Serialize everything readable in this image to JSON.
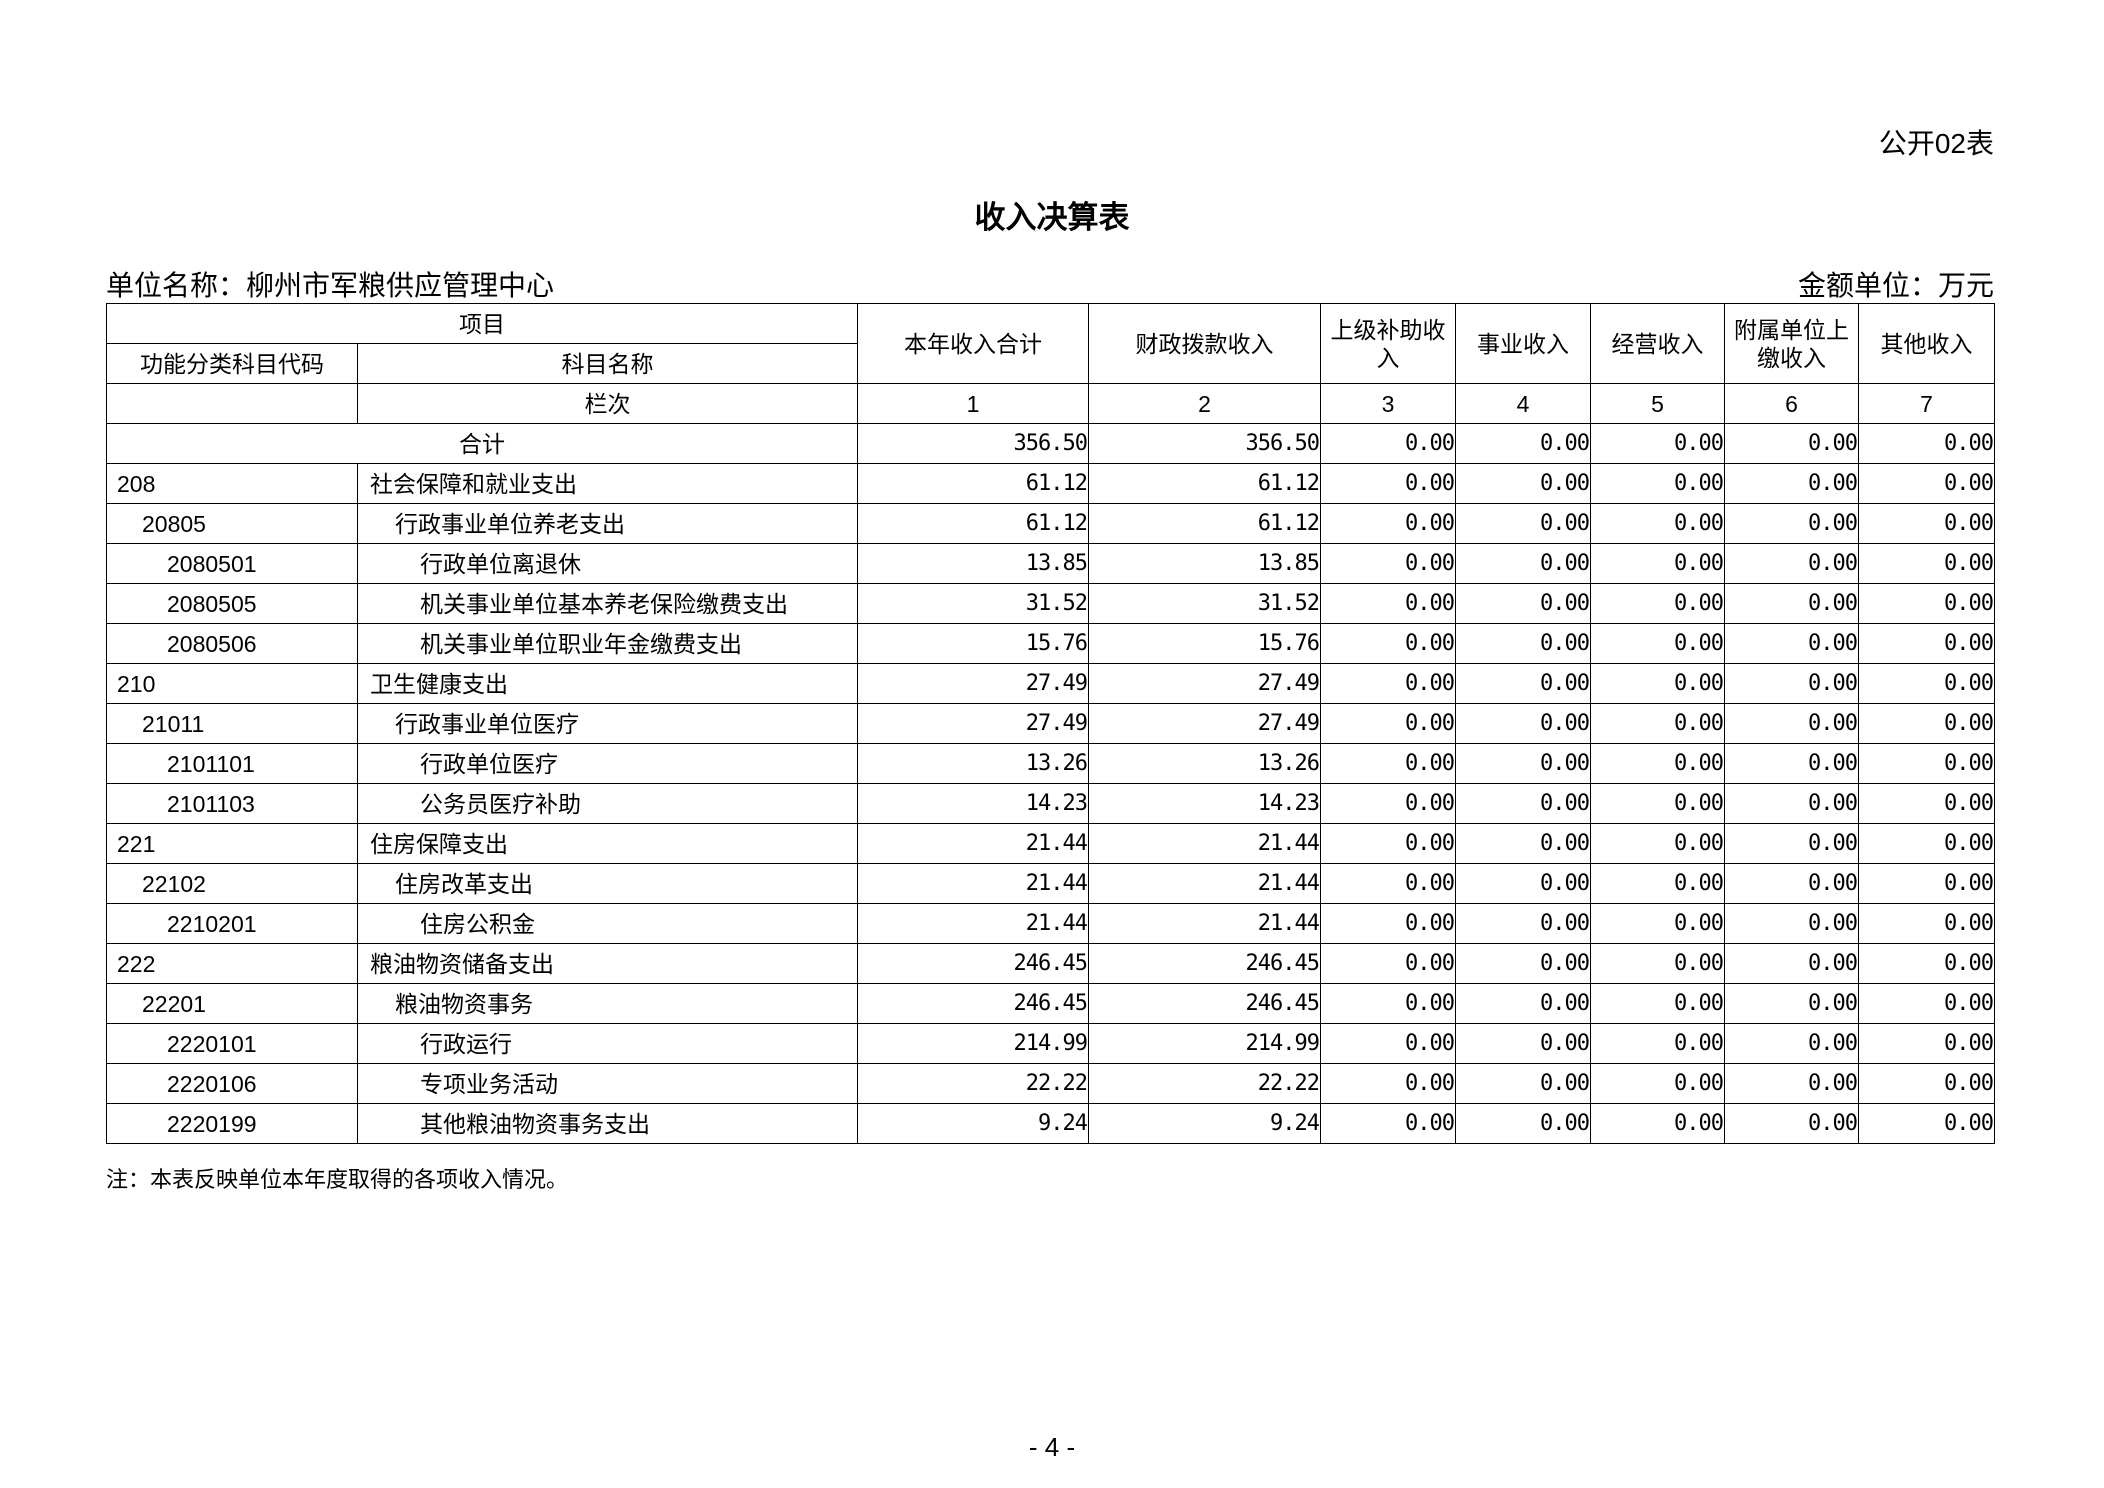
{
  "header": {
    "code": "公开02表",
    "title": "收入决算表",
    "unit_name": "单位名称：柳州市军粮供应管理中心",
    "amount_unit": "金额单位：万元"
  },
  "table": {
    "item_header": "项目",
    "sub_headers": [
      "功能分类科目代码",
      "科目名称"
    ],
    "column_headers": [
      "本年收入合计",
      "财政拨款收入",
      "上级补助收入",
      "事业收入",
      "经营收入",
      "附属单位上缴收入",
      "其他收入"
    ],
    "index_label": "栏次",
    "column_numbers": [
      "1",
      "2",
      "3",
      "4",
      "5",
      "6",
      "7"
    ],
    "total": {
      "label": "合计",
      "values": [
        "356.50",
        "356.50",
        "0.00",
        "0.00",
        "0.00",
        "0.00",
        "0.00"
      ]
    },
    "rows": [
      {
        "code": "208",
        "name": "社会保障和就业支出",
        "values": [
          "61.12",
          "61.12",
          "0.00",
          "0.00",
          "0.00",
          "0.00",
          "0.00"
        ]
      },
      {
        "code": "20805",
        "name": "行政事业单位养老支出",
        "values": [
          "61.12",
          "61.12",
          "0.00",
          "0.00",
          "0.00",
          "0.00",
          "0.00"
        ]
      },
      {
        "code": "2080501",
        "name": "行政单位离退休",
        "values": [
          "13.85",
          "13.85",
          "0.00",
          "0.00",
          "0.00",
          "0.00",
          "0.00"
        ]
      },
      {
        "code": "2080505",
        "name": "机关事业单位基本养老保险缴费支出",
        "values": [
          "31.52",
          "31.52",
          "0.00",
          "0.00",
          "0.00",
          "0.00",
          "0.00"
        ]
      },
      {
        "code": "2080506",
        "name": "机关事业单位职业年金缴费支出",
        "values": [
          "15.76",
          "15.76",
          "0.00",
          "0.00",
          "0.00",
          "0.00",
          "0.00"
        ]
      },
      {
        "code": "210",
        "name": "卫生健康支出",
        "values": [
          "27.49",
          "27.49",
          "0.00",
          "0.00",
          "0.00",
          "0.00",
          "0.00"
        ]
      },
      {
        "code": "21011",
        "name": "行政事业单位医疗",
        "values": [
          "27.49",
          "27.49",
          "0.00",
          "0.00",
          "0.00",
          "0.00",
          "0.00"
        ]
      },
      {
        "code": "2101101",
        "name": "行政单位医疗",
        "values": [
          "13.26",
          "13.26",
          "0.00",
          "0.00",
          "0.00",
          "0.00",
          "0.00"
        ]
      },
      {
        "code": "2101103",
        "name": "公务员医疗补助",
        "values": [
          "14.23",
          "14.23",
          "0.00",
          "0.00",
          "0.00",
          "0.00",
          "0.00"
        ]
      },
      {
        "code": "221",
        "name": "住房保障支出",
        "values": [
          "21.44",
          "21.44",
          "0.00",
          "0.00",
          "0.00",
          "0.00",
          "0.00"
        ]
      },
      {
        "code": "22102",
        "name": "住房改革支出",
        "values": [
          "21.44",
          "21.44",
          "0.00",
          "0.00",
          "0.00",
          "0.00",
          "0.00"
        ]
      },
      {
        "code": "2210201",
        "name": "住房公积金",
        "values": [
          "21.44",
          "21.44",
          "0.00",
          "0.00",
          "0.00",
          "0.00",
          "0.00"
        ]
      },
      {
        "code": "222",
        "name": "粮油物资储备支出",
        "values": [
          "246.45",
          "246.45",
          "0.00",
          "0.00",
          "0.00",
          "0.00",
          "0.00"
        ]
      },
      {
        "code": "22201",
        "name": "粮油物资事务",
        "values": [
          "246.45",
          "246.45",
          "0.00",
          "0.00",
          "0.00",
          "0.00",
          "0.00"
        ]
      },
      {
        "code": "2220101",
        "name": "行政运行",
        "values": [
          "214.99",
          "214.99",
          "0.00",
          "0.00",
          "0.00",
          "0.00",
          "0.00"
        ]
      },
      {
        "code": "2220106",
        "name": "专项业务活动",
        "values": [
          "22.22",
          "22.22",
          "0.00",
          "0.00",
          "0.00",
          "0.00",
          "0.00"
        ]
      },
      {
        "code": "2220199",
        "name": "其他粮油物资事务支出",
        "values": [
          "9.24",
          "9.24",
          "0.00",
          "0.00",
          "0.00",
          "0.00",
          "0.00"
        ]
      }
    ]
  },
  "note": "注：本表反映单位本年度取得的各项收入情况。",
  "page_number": "- 4 -"
}
